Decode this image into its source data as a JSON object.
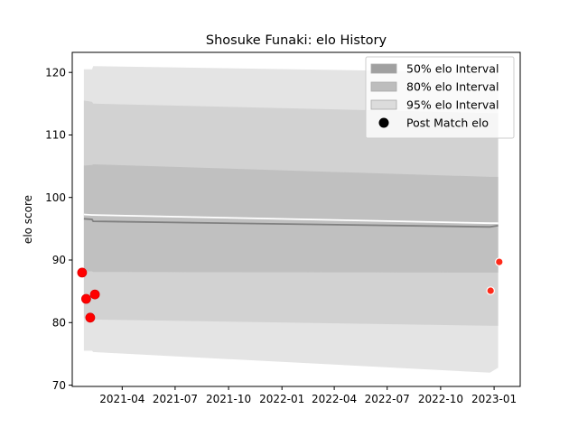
{
  "chart_data": {
    "type": "line",
    "title": "Shosuke Funaki: elo History",
    "xlabel": "",
    "ylabel": "elo score",
    "x_axis_type": "date",
    "xlim": [
      "2021-01-05",
      "2023-02-15"
    ],
    "ylim": [
      69.8,
      123.2
    ],
    "x_ticks": [
      "2021-04-01",
      "2021-07-01",
      "2021-10-01",
      "2022-01-01",
      "2022-04-01",
      "2022-07-01",
      "2022-10-01",
      "2023-01-01"
    ],
    "x_tick_labels": [
      "2021-04",
      "2021-07",
      "2021-10",
      "2022-01",
      "2022-04",
      "2022-07",
      "2022-10",
      "2023-01"
    ],
    "y_ticks": [
      70,
      80,
      90,
      100,
      110,
      120
    ],
    "y_tick_labels": [
      "70",
      "80",
      "90",
      "100",
      "110",
      "120"
    ],
    "grid": false,
    "legend_position": "top-right",
    "legend": [
      {
        "label": "50% elo Interval",
        "kind": "patch",
        "color": "#a0a0a0"
      },
      {
        "label": "80% elo Interval",
        "kind": "patch",
        "color": "#bdbdbd"
      },
      {
        "label": "95% elo Interval",
        "kind": "patch",
        "color": "#dcdcdc"
      },
      {
        "label": "Post Match elo",
        "kind": "marker",
        "color": "#000000"
      }
    ],
    "bands": [
      {
        "name": "95% elo Interval",
        "fill": "#e4e4e4",
        "x": [
          "2021-01-25",
          "2021-02-08",
          "2021-02-10",
          "2022-12-25",
          "2023-01-08"
        ],
        "upper": [
          120.5,
          120.5,
          121.0,
          120.0,
          120.0
        ],
        "lower": [
          75.5,
          75.5,
          75.3,
          72.0,
          72.8
        ]
      },
      {
        "name": "80% elo Interval",
        "fill": "#d2d2d2",
        "x": [
          "2021-01-25",
          "2021-02-08",
          "2021-02-10",
          "2022-12-25",
          "2023-01-08"
        ],
        "upper": [
          115.5,
          115.3,
          115.0,
          113.5,
          113.5
        ],
        "lower": [
          80.7,
          80.7,
          80.5,
          79.5,
          79.5
        ]
      },
      {
        "name": "50% elo Interval",
        "fill": "#c0c0c0",
        "x": [
          "2021-01-25",
          "2021-02-08",
          "2021-02-10",
          "2022-12-25",
          "2023-01-08"
        ],
        "upper": [
          105.1,
          105.2,
          105.3,
          103.3,
          103.3
        ],
        "lower": [
          88.2,
          88.2,
          88.1,
          88.0,
          88.0
        ]
      }
    ],
    "lines": [
      {
        "name": "estimate",
        "color": "#808080",
        "x": [
          "2021-01-25",
          "2021-02-08",
          "2021-02-10",
          "2022-12-25",
          "2023-01-08"
        ],
        "y": [
          96.6,
          96.5,
          96.2,
          95.3,
          95.5
        ]
      },
      {
        "name": "post-estimate",
        "color": "#ffffff",
        "x": [
          "2021-01-25",
          "2021-02-08",
          "2021-02-10",
          "2022-12-25",
          "2023-01-08"
        ],
        "y": [
          97.3,
          97.2,
          97.2,
          95.9,
          95.9
        ]
      }
    ],
    "series": [
      {
        "name": "Post Match elo",
        "type": "scatter",
        "points": [
          {
            "x": "2021-01-22",
            "y": 88.0,
            "color": "#ff0000",
            "edge": "#e00000",
            "size": "large"
          },
          {
            "x": "2021-01-29",
            "y": 83.8,
            "color": "#ff0000",
            "edge": "#e00000",
            "size": "large"
          },
          {
            "x": "2021-02-05",
            "y": 80.8,
            "color": "#ff0000",
            "edge": "#e00000",
            "size": "large"
          },
          {
            "x": "2021-02-13",
            "y": 84.5,
            "color": "#ff0000",
            "edge": "#e00000",
            "size": "large"
          },
          {
            "x": "2022-12-26",
            "y": 85.1,
            "color": "#ff2a1a",
            "edge": "#ffffff",
            "size": "small"
          },
          {
            "x": "2023-01-10",
            "y": 89.7,
            "color": "#ff2a1a",
            "edge": "#ffffff",
            "size": "small"
          }
        ]
      }
    ]
  }
}
